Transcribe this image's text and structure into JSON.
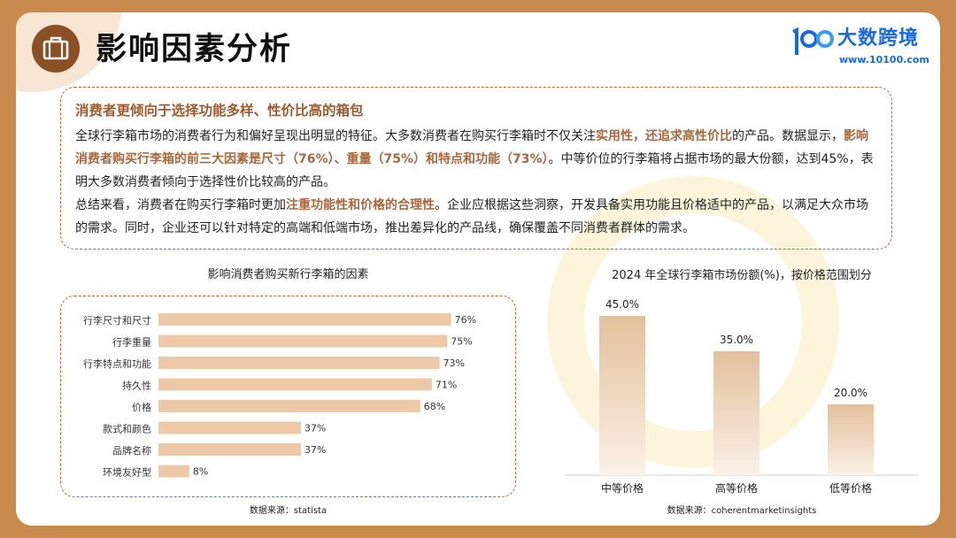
{
  "page": {
    "title": "影响因素分析",
    "icon": "briefcase-icon",
    "accent_color": "#c98a4e"
  },
  "logo": {
    "icon": "logo-100-mark-icon",
    "name": "大数跨境",
    "url": "www.10100.com",
    "color": "#1769e0"
  },
  "summary": {
    "heading": "消费者更倾向于选择功能多样、性价比高的箱包",
    "p1": {
      "a": "全球行李箱市场的消费者行为和偏好呈现出明显的特征。大多数消费者在购买行李箱时不仅关注",
      "b": "实用性，还追求高性价比",
      "c": "的产品。数据显示，",
      "d": "影响消费者购买行李箱的前三大因素是尺寸（76%）、重量（75%）和特点和功能（73%）",
      "e": "。中等价位的行李箱将占据市场的最大份额，达到45%，表明大多数消费者倾向于选择性价比较高的产品。"
    },
    "p2": {
      "a": "总结来看，消费者在购买行李箱时更加",
      "b": "注重功能性和价格的合理性",
      "c": "。企业应根据这些洞察，开发具备实用功能且价格适中的产品，以满足大众市场的需求。同时，企业还可以针对特定的高端和低端市场，推出差异化的产品线，确保覆盖不同消费者群体的需求。"
    }
  },
  "chart_data": [
    {
      "type": "bar",
      "orientation": "horizontal",
      "title": "影响消费者购买新行李箱的因素",
      "categories": [
        "行李尺寸和尺寸",
        "行李重量",
        "行李特点和功能",
        "持久性",
        "价格",
        "款式和颜色",
        "品牌名称",
        "环境友好型"
      ],
      "values": [
        76,
        75,
        73,
        71,
        68,
        37,
        37,
        8
      ],
      "value_labels": [
        "76%",
        "75%",
        "73%",
        "71%",
        "68%",
        "37%",
        "37%",
        "8%"
      ],
      "xlim": [
        0,
        80
      ],
      "grid": false,
      "bar_color": "#edc9a8",
      "source": "数据来源：statista"
    },
    {
      "type": "bar",
      "orientation": "vertical",
      "title": "2024 年全球行李箱市场份额(%)，按价格范围划分",
      "categories": [
        "中等价格",
        "高等价格",
        "低等价格"
      ],
      "values": [
        45.0,
        35.0,
        20.0
      ],
      "value_labels": [
        "45.0%",
        "35.0%",
        "20.0%"
      ],
      "ylim": [
        0,
        50
      ],
      "grid": false,
      "bar_gradient": [
        "#e3c09b",
        "#fbf1e7"
      ],
      "source": "数据来源：coherentmarketinsights"
    }
  ]
}
